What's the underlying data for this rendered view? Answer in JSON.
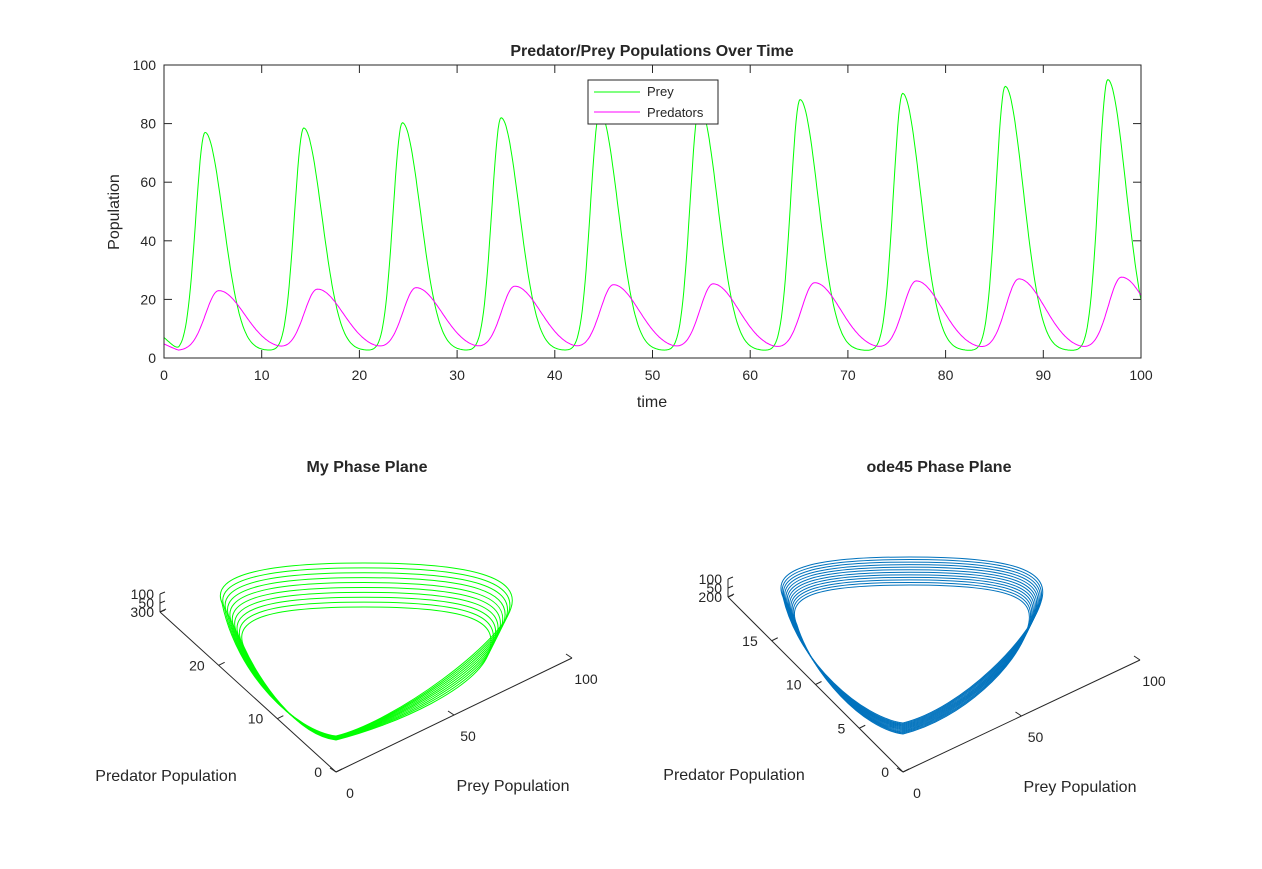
{
  "chart_data": [
    {
      "type": "line",
      "title": "Predator/Prey Populations Over Time",
      "xlabel": "time",
      "ylabel": "Population",
      "xlim": [
        0,
        100
      ],
      "ylim": [
        0,
        100
      ],
      "xticks": [
        "0",
        "10",
        "20",
        "30",
        "40",
        "50",
        "60",
        "70",
        "80",
        "90",
        "100"
      ],
      "yticks": [
        "0",
        "20",
        "40",
        "60",
        "80",
        "100"
      ],
      "legend_position": "top-center",
      "series": [
        {
          "name": "Prey",
          "color": "#00ff00",
          "peaks": [
            [
              4.2,
              77
            ],
            [
              14.3,
              78.5
            ],
            [
              24.4,
              80.3
            ],
            [
              34.5,
              82
            ],
            [
              44.6,
              84
            ],
            [
              54.8,
              86
            ],
            [
              65.1,
              88.2
            ],
            [
              75.6,
              90.3
            ],
            [
              86.1,
              92.7
            ],
            [
              96.6,
              95
            ]
          ],
          "minimum": 2.5,
          "start": 7
        },
        {
          "name": "Predators",
          "color": "#ff00ff",
          "peaks": [
            [
              5.6,
              23
            ],
            [
              15.7,
              23.5
            ],
            [
              25.8,
              24
            ],
            [
              35.9,
              24.5
            ],
            [
              46,
              25
            ],
            [
              56.2,
              25.3
            ],
            [
              66.6,
              25.7
            ],
            [
              77,
              26.3
            ],
            [
              87.5,
              27
            ],
            [
              98,
              27.6
            ]
          ],
          "minimum": 2.5,
          "start": 4.8
        }
      ]
    },
    {
      "type": "line",
      "title": "My Phase Plane",
      "xlabel": "Prey Population",
      "ylabel": "Predator Population",
      "x_ticks": [
        "0",
        "50",
        "100"
      ],
      "y_ticks": [
        "0",
        "10",
        "20",
        "30"
      ],
      "z_ticks": [
        "0",
        "50",
        "100"
      ],
      "color": "#00ff00",
      "loops": 10
    },
    {
      "type": "line",
      "title": "ode45 Phase Plane",
      "xlabel": "Prey Population",
      "ylabel": "Predator Population",
      "x_ticks": [
        "0",
        "50",
        "100"
      ],
      "y_ticks": [
        "0",
        "5",
        "10",
        "15",
        "20"
      ],
      "z_ticks": [
        "0",
        "50",
        "100"
      ],
      "color": "#0072bd",
      "loops": 12
    }
  ]
}
